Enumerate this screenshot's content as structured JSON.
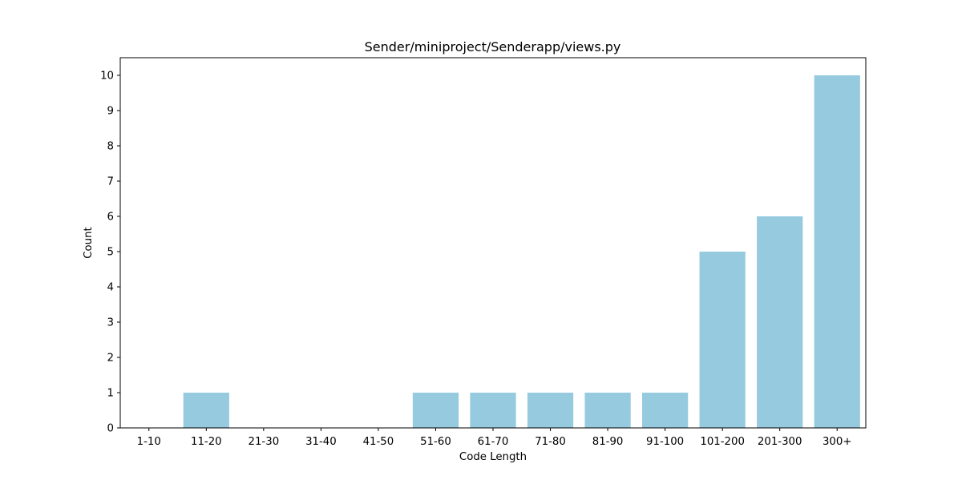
{
  "chart_data": {
    "type": "bar",
    "title": "Sender/miniproject/Senderapp/views.py",
    "xlabel": "Code Length",
    "ylabel": "Count",
    "categories": [
      "1-10",
      "11-20",
      "21-30",
      "31-40",
      "41-50",
      "51-60",
      "61-70",
      "71-80",
      "81-90",
      "91-100",
      "101-200",
      "201-300",
      "300+"
    ],
    "values": [
      0,
      1,
      0,
      0,
      0,
      1,
      1,
      1,
      1,
      1,
      5,
      6,
      10
    ],
    "ylim": [
      0,
      10.5
    ],
    "yticks": [
      0,
      1,
      2,
      3,
      4,
      5,
      6,
      7,
      8,
      9,
      10
    ],
    "grid": false,
    "bar_color": "#96cadf"
  }
}
